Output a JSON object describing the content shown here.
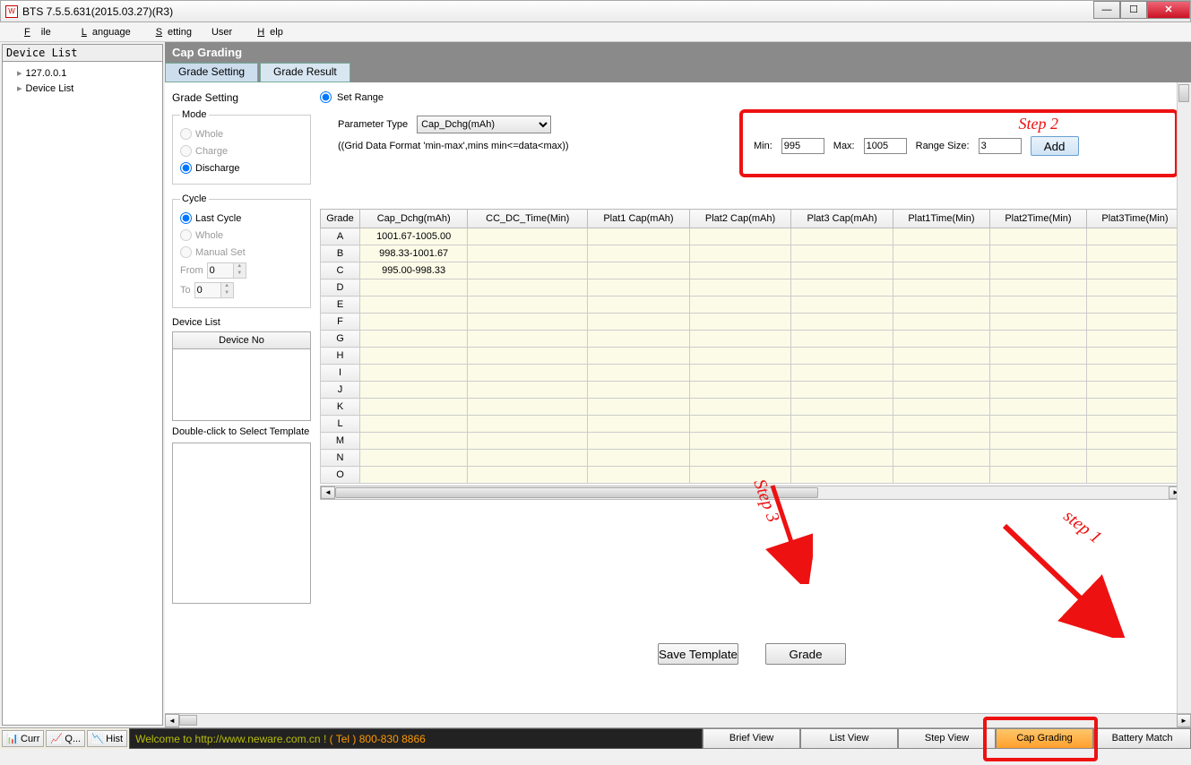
{
  "window": {
    "title": "BTS 7.5.5.631(2015.03.27)(R3)",
    "icon_label": "W"
  },
  "menu": {
    "file": "File",
    "language": "Language",
    "setting": "Setting",
    "user": "User",
    "help": "Help"
  },
  "sidebar": {
    "title": "Device List",
    "items": [
      "127.0.0.1",
      "Device List"
    ]
  },
  "capgrading": {
    "header": "Cap Grading",
    "tabs": {
      "setting": "Grade Setting",
      "result": "Grade Result"
    },
    "grade_setting_label": "Grade Setting",
    "mode": {
      "legend": "Mode",
      "whole": "Whole",
      "charge": "Charge",
      "discharge": "Discharge",
      "selected": "discharge"
    },
    "cycle": {
      "legend": "Cycle",
      "lastcycle": "Last Cycle",
      "whole": "Whole",
      "manual": "Manual Set",
      "from_label": "From",
      "to_label": "To",
      "from": "0",
      "to": "0",
      "selected": "lastcycle"
    },
    "devicelist": {
      "legend": "Device List",
      "header": "Device No"
    },
    "template_note": "Double-click to Select Template",
    "setrange": {
      "label": "Set Range",
      "param_label": "Parameter Type",
      "param_value": "Cap_Dchg(mAh)",
      "grid_note": "((Grid Data Format 'min-max',mins min<=data<max))"
    },
    "range": {
      "min_label": "Min:",
      "min": "995",
      "max_label": "Max:",
      "max": "1005",
      "rs_label": "Range Size:",
      "rs": "3",
      "add": "Add",
      "step2": "Step 2"
    },
    "grid": {
      "columns": [
        "Grade",
        "Cap_Dchg(mAh)",
        "CC_DC_Time(Min)",
        "Plat1 Cap(mAh)",
        "Plat2 Cap(mAh)",
        "Plat3 Cap(mAh)",
        "Plat1Time(Min)",
        "Plat2Time(Min)",
        "Plat3Time(Min)"
      ],
      "rows": [
        {
          "g": "A",
          "v": "1001.67-1005.00"
        },
        {
          "g": "B",
          "v": "998.33-1001.67"
        },
        {
          "g": "C",
          "v": "995.00-998.33"
        },
        {
          "g": "D",
          "v": ""
        },
        {
          "g": "E",
          "v": ""
        },
        {
          "g": "F",
          "v": ""
        },
        {
          "g": "G",
          "v": ""
        },
        {
          "g": "H",
          "v": ""
        },
        {
          "g": "I",
          "v": ""
        },
        {
          "g": "J",
          "v": ""
        },
        {
          "g": "K",
          "v": ""
        },
        {
          "g": "L",
          "v": ""
        },
        {
          "g": "M",
          "v": ""
        },
        {
          "g": "N",
          "v": ""
        },
        {
          "g": "O",
          "v": ""
        }
      ]
    },
    "buttons": {
      "save_template": "Save Template",
      "grade": "Grade"
    },
    "step3": "Step 3",
    "step1": "step 1"
  },
  "statusbar": {
    "curr": "Curr",
    "q": "Q...",
    "hist": "Hist",
    "welcome_a": "Welcome to http://www.neware.com.cn !   ",
    "welcome_b": "( Tel ) 800-830 8866",
    "views": {
      "brief": "Brief View",
      "list": "List View",
      "step": "Step View",
      "cap": "Cap Grading",
      "battery": "Battery Match"
    }
  },
  "colors": {
    "annotation": "#e11",
    "selected_view_bg": "#ff9f2e",
    "welcome_text": "#b8bd0b",
    "tel_text": "#ff9900",
    "cell_bg": "#fbfbe8"
  }
}
